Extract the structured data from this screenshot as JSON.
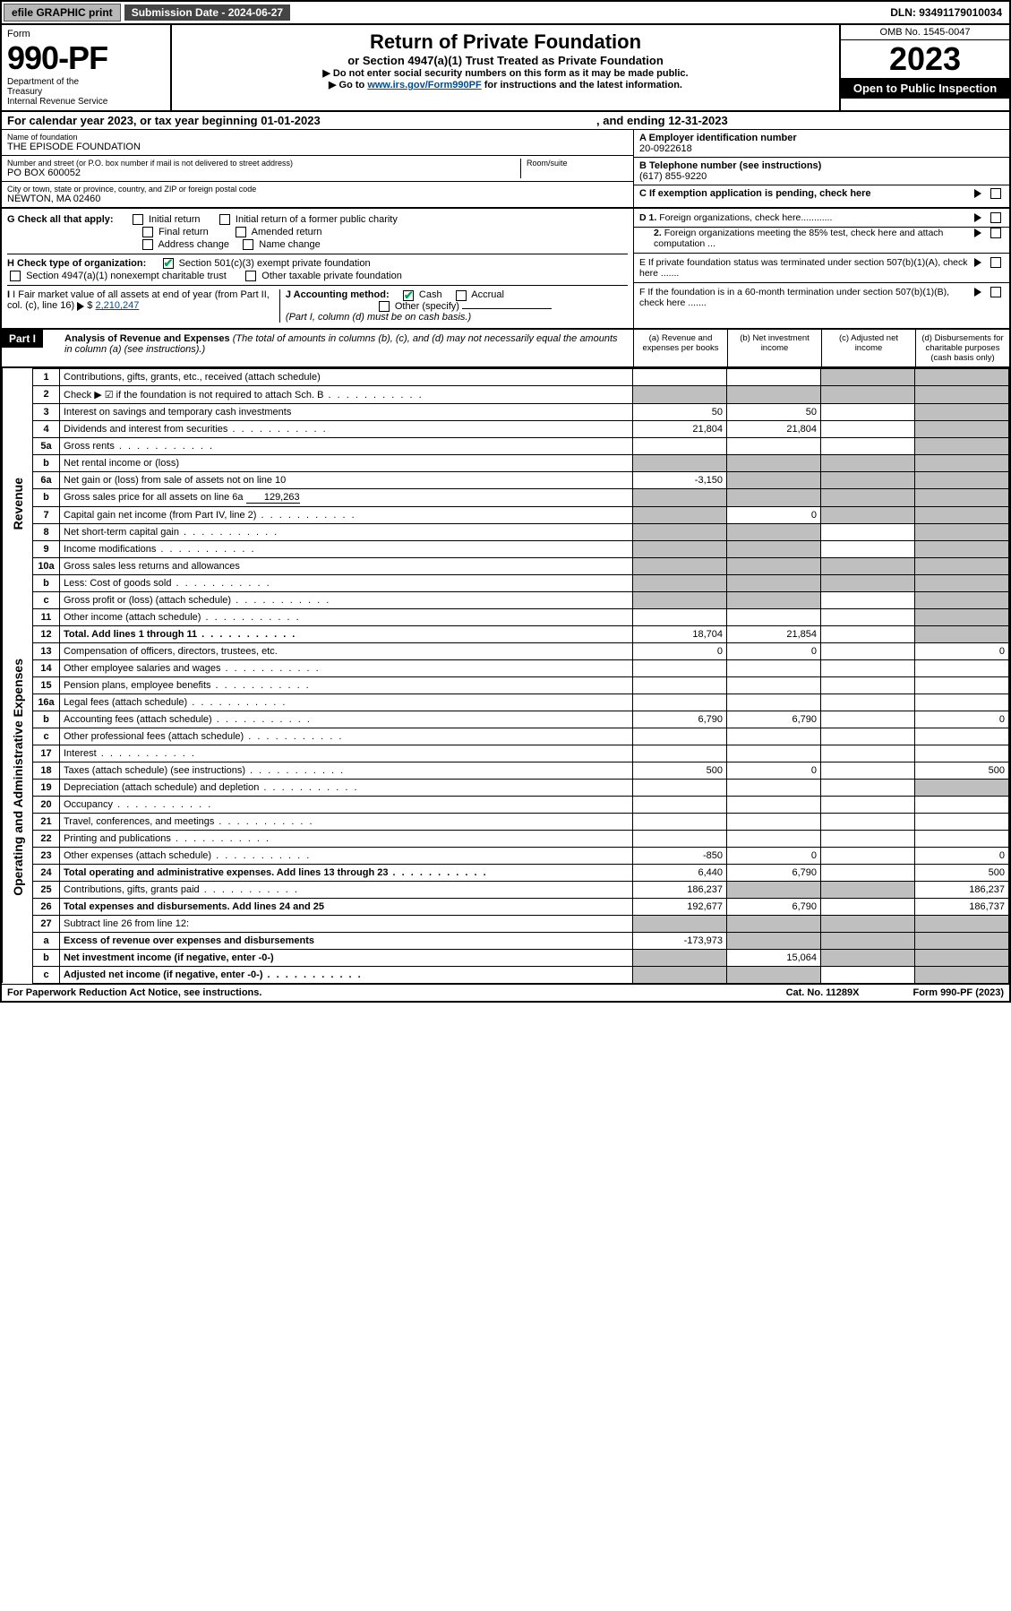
{
  "topbar": {
    "efile": "efile GRAPHIC print",
    "subdate": "Submission Date - 2024-06-27",
    "dln": "DLN: 93491179010034"
  },
  "header": {
    "form_label": "Form",
    "form_number": "990-PF",
    "dept": "Department of the Treasury\nInternal Revenue Service",
    "title": "Return of Private Foundation",
    "subtitle": "or Section 4947(a)(1) Trust Treated as Private Foundation",
    "note1": "▶ Do not enter social security numbers on this form as it may be made public.",
    "note2_pre": "▶ Go to ",
    "note2_link": "www.irs.gov/Form990PF",
    "note2_post": " for instructions and the latest information.",
    "omb": "OMB No. 1545-0047",
    "taxyear": "2023",
    "open": "Open to Public Inspection"
  },
  "cal": {
    "pre": "For calendar year 2023, or tax year beginning 01-01-2023",
    "mid": ", and ending 12-31-2023"
  },
  "addr": {
    "name_label": "Name of foundation",
    "name": "THE EPISODE FOUNDATION",
    "street_label": "Number and street (or P.O. box number if mail is not delivered to street address)",
    "street": "PO BOX 600052",
    "room_label": "Room/suite",
    "city_label": "City or town, state or province, country, and ZIP or foreign postal code",
    "city": "NEWTON, MA  02460",
    "a_label": "A Employer identification number",
    "a_val": "20-0922618",
    "b_label": "B Telephone number (see instructions)",
    "b_val": "(617) 855-9220",
    "c_label": "C If exemption application is pending, check here"
  },
  "checks": {
    "g_label": "G Check all that apply:",
    "g_opts": [
      "Initial return",
      "Initial return of a former public charity",
      "Final return",
      "Amended return",
      "Address change",
      "Name change"
    ],
    "h_label": "H Check type of organization:",
    "h_opts": [
      "Section 501(c)(3) exempt private foundation",
      "Section 4947(a)(1) nonexempt charitable trust",
      "Other taxable private foundation"
    ],
    "i_label": "I Fair market value of all assets at end of year (from Part II, col. (c), line 16)",
    "i_val": "2,210,247",
    "j_label": "J Accounting method:",
    "j_opts": [
      "Cash",
      "Accrual",
      "Other (specify)"
    ],
    "j_note": "(Part I, column (d) must be on cash basis.)",
    "d1": "D 1. Foreign organizations, check here............",
    "d2": "2. Foreign organizations meeting the 85% test, check here and attach computation ...",
    "e": "E  If private foundation status was terminated under section 507(b)(1)(A), check here .......",
    "f": "F  If the foundation is in a 60-month termination under section 507(b)(1)(B), check here ......."
  },
  "part1": {
    "label": "Part I",
    "title": "Analysis of Revenue and Expenses",
    "title_note": " (The total of amounts in columns (b), (c), and (d) may not necessarily equal the amounts in column (a) (see instructions).)",
    "col_a": "(a)   Revenue and expenses per books",
    "col_b": "(b)   Net investment income",
    "col_c": "(c)   Adjusted net income",
    "col_d": "(d)   Disbursements for charitable purposes (cash basis only)"
  },
  "sections": {
    "revenue": "Revenue",
    "opex": "Operating and Administrative Expenses"
  },
  "rows": [
    {
      "n": "1",
      "d": "Contributions, gifts, grants, etc., received (attach schedule)",
      "a": "",
      "b": "",
      "c": "g",
      "dd": "g"
    },
    {
      "n": "2",
      "d": "Check ▶ ☑ if the foundation is not required to attach Sch. B",
      "a": "g",
      "b": "g",
      "c": "g",
      "dd": "g",
      "dots": true
    },
    {
      "n": "3",
      "d": "Interest on savings and temporary cash investments",
      "a": "50",
      "b": "50",
      "c": "",
      "dd": "g"
    },
    {
      "n": "4",
      "d": "Dividends and interest from securities",
      "a": "21,804",
      "b": "21,804",
      "c": "",
      "dd": "g",
      "dots": true
    },
    {
      "n": "5a",
      "d": "Gross rents",
      "a": "",
      "b": "",
      "c": "",
      "dd": "g",
      "dots": true
    },
    {
      "n": "b",
      "d": "Net rental income or (loss)",
      "a": "g",
      "b": "g",
      "c": "g",
      "dd": "g",
      "inset": true
    },
    {
      "n": "6a",
      "d": "Net gain or (loss) from sale of assets not on line 10",
      "a": "-3,150",
      "b": "g",
      "c": "g",
      "dd": "g"
    },
    {
      "n": "b",
      "d": "Gross sales price for all assets on line 6a",
      "a": "g",
      "b": "g",
      "c": "g",
      "dd": "g",
      "inset": true,
      "inset_val": "129,263"
    },
    {
      "n": "7",
      "d": "Capital gain net income (from Part IV, line 2)",
      "a": "g",
      "b": "0",
      "c": "g",
      "dd": "g",
      "dots": true
    },
    {
      "n": "8",
      "d": "Net short-term capital gain",
      "a": "g",
      "b": "g",
      "c": "",
      "dd": "g",
      "dots": true
    },
    {
      "n": "9",
      "d": "Income modifications",
      "a": "g",
      "b": "g",
      "c": "",
      "dd": "g",
      "dots": true
    },
    {
      "n": "10a",
      "d": "Gross sales less returns and allowances",
      "a": "g",
      "b": "g",
      "c": "g",
      "dd": "g",
      "inset": true
    },
    {
      "n": "b",
      "d": "Less: Cost of goods sold",
      "a": "g",
      "b": "g",
      "c": "g",
      "dd": "g",
      "inset": true,
      "dots": true
    },
    {
      "n": "c",
      "d": "Gross profit or (loss) (attach schedule)",
      "a": "g",
      "b": "g",
      "c": "",
      "dd": "g",
      "dots": true
    },
    {
      "n": "11",
      "d": "Other income (attach schedule)",
      "a": "",
      "b": "",
      "c": "",
      "dd": "g",
      "dots": true
    },
    {
      "n": "12",
      "d": "Total. Add lines 1 through 11",
      "a": "18,704",
      "b": "21,854",
      "c": "",
      "dd": "g",
      "bold": true,
      "dots": true
    }
  ],
  "rows2": [
    {
      "n": "13",
      "d": "Compensation of officers, directors, trustees, etc.",
      "a": "0",
      "b": "0",
      "c": "",
      "dd": "0"
    },
    {
      "n": "14",
      "d": "Other employee salaries and wages",
      "a": "",
      "b": "",
      "c": "",
      "dd": "",
      "dots": true
    },
    {
      "n": "15",
      "d": "Pension plans, employee benefits",
      "a": "",
      "b": "",
      "c": "",
      "dd": "",
      "dots": true
    },
    {
      "n": "16a",
      "d": "Legal fees (attach schedule)",
      "a": "",
      "b": "",
      "c": "",
      "dd": "",
      "dots": true
    },
    {
      "n": "b",
      "d": "Accounting fees (attach schedule)",
      "a": "6,790",
      "b": "6,790",
      "c": "",
      "dd": "0",
      "dots": true
    },
    {
      "n": "c",
      "d": "Other professional fees (attach schedule)",
      "a": "",
      "b": "",
      "c": "",
      "dd": "",
      "dots": true
    },
    {
      "n": "17",
      "d": "Interest",
      "a": "",
      "b": "",
      "c": "",
      "dd": "",
      "dots": true
    },
    {
      "n": "18",
      "d": "Taxes (attach schedule) (see instructions)",
      "a": "500",
      "b": "0",
      "c": "",
      "dd": "500",
      "dots": true
    },
    {
      "n": "19",
      "d": "Depreciation (attach schedule) and depletion",
      "a": "",
      "b": "",
      "c": "",
      "dd": "g",
      "dots": true
    },
    {
      "n": "20",
      "d": "Occupancy",
      "a": "",
      "b": "",
      "c": "",
      "dd": "",
      "dots": true
    },
    {
      "n": "21",
      "d": "Travel, conferences, and meetings",
      "a": "",
      "b": "",
      "c": "",
      "dd": "",
      "dots": true
    },
    {
      "n": "22",
      "d": "Printing and publications",
      "a": "",
      "b": "",
      "c": "",
      "dd": "",
      "dots": true
    },
    {
      "n": "23",
      "d": "Other expenses (attach schedule)",
      "a": "-850",
      "b": "0",
      "c": "",
      "dd": "0",
      "dots": true
    },
    {
      "n": "24",
      "d": "Total operating and administrative expenses. Add lines 13 through 23",
      "a": "6,440",
      "b": "6,790",
      "c": "",
      "dd": "500",
      "bold": true,
      "dots": true
    },
    {
      "n": "25",
      "d": "Contributions, gifts, grants paid",
      "a": "186,237",
      "b": "g",
      "c": "g",
      "dd": "186,237",
      "dots": true
    },
    {
      "n": "26",
      "d": "Total expenses and disbursements. Add lines 24 and 25",
      "a": "192,677",
      "b": "6,790",
      "c": "",
      "dd": "186,737",
      "bold": true
    }
  ],
  "rows3": [
    {
      "n": "27",
      "d": "Subtract line 26 from line 12:",
      "a": "g",
      "b": "g",
      "c": "g",
      "dd": "g"
    },
    {
      "n": "a",
      "d": "Excess of revenue over expenses and disbursements",
      "a": "-173,973",
      "b": "g",
      "c": "g",
      "dd": "g",
      "bold": true
    },
    {
      "n": "b",
      "d": "Net investment income (if negative, enter -0-)",
      "a": "g",
      "b": "15,064",
      "c": "g",
      "dd": "g",
      "bold": true
    },
    {
      "n": "c",
      "d": "Adjusted net income (if negative, enter -0-)",
      "a": "g",
      "b": "g",
      "c": "",
      "dd": "g",
      "bold": true,
      "dots": true
    }
  ],
  "footer": {
    "f1": "For Paperwork Reduction Act Notice, see instructions.",
    "f2": "Cat. No. 11289X",
    "f3": "Form 990-PF (2023)"
  }
}
